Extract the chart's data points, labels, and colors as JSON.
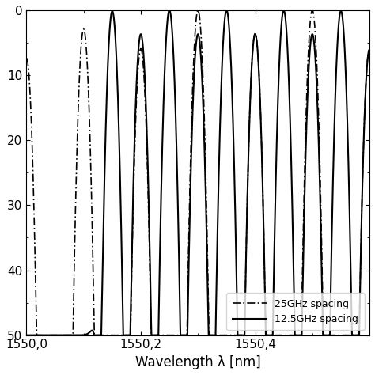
{
  "xlim": [
    1550.0,
    1550.6
  ],
  "ylim": [
    50,
    0
  ],
  "yticks": [
    0,
    10,
    20,
    30,
    40,
    50
  ],
  "xticks": [
    1550.0,
    1550.2,
    1550.4
  ],
  "xlabel": "Wavelength λ [nm]",
  "ylabel": "",
  "legend": [
    "25GHz spacing",
    "12.5GHz spacing"
  ],
  "background_color": "#ffffff",
  "line_color": "#000000",
  "figsize": [
    4.74,
    4.74
  ],
  "dpi": 100
}
